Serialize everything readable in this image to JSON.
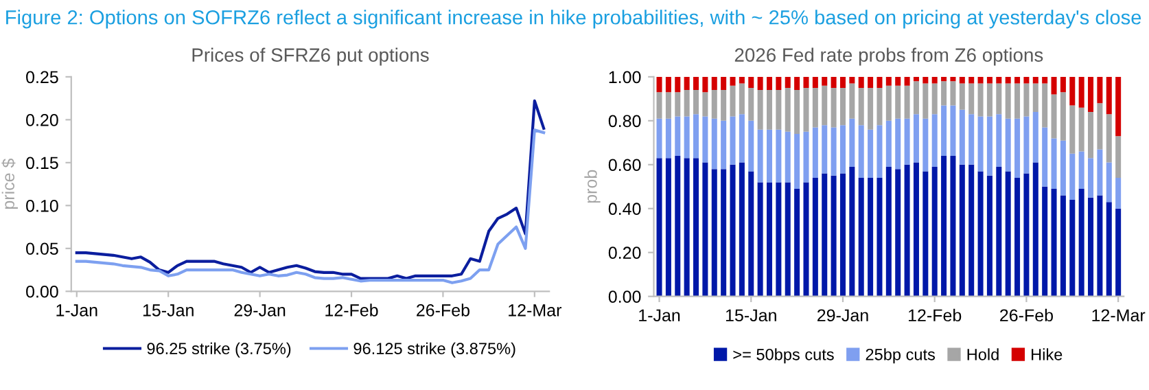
{
  "chart_data": [
    {
      "type": "line",
      "title": "Prices of SFRZ6 put options",
      "ylabel": "price $",
      "annotations": [
        "Figure 2: Options on SOFRZ6 reflect a significant increase in hike probabilities, with ~ 25% based on pricing at yesterday's close"
      ],
      "categories": [
        "1-Jan",
        null,
        null,
        null,
        null,
        null,
        null,
        null,
        null,
        null,
        "15-Jan",
        null,
        null,
        null,
        null,
        null,
        null,
        null,
        null,
        null,
        "29-Jan",
        null,
        null,
        null,
        null,
        null,
        null,
        null,
        null,
        null,
        "12-Feb",
        null,
        null,
        null,
        null,
        null,
        null,
        null,
        null,
        null,
        "26-Feb",
        null,
        null,
        null,
        null,
        null,
        null,
        null,
        null,
        null,
        "12-Mar",
        null
      ],
      "series": [
        {
          "name": "96.25 strike (3.75%)",
          "color": "#0b1e9e",
          "values": [
            0.045,
            0.045,
            0.044,
            0.043,
            0.042,
            0.04,
            0.038,
            0.04,
            0.034,
            0.025,
            0.022,
            0.03,
            0.035,
            0.035,
            0.035,
            0.035,
            0.032,
            0.03,
            0.028,
            0.022,
            0.028,
            0.022,
            0.025,
            0.028,
            0.03,
            0.027,
            0.023,
            0.022,
            0.022,
            0.02,
            0.02,
            0.015,
            0.015,
            0.015,
            0.015,
            0.018,
            0.015,
            0.018,
            0.018,
            0.018,
            0.018,
            0.018,
            0.02,
            0.038,
            0.035,
            0.07,
            0.085,
            0.09,
            0.097,
            0.067,
            0.222,
            0.19
          ]
        },
        {
          "name": "96.125 strike (3.875%)",
          "color": "#7da0f0",
          "values": [
            0.035,
            0.035,
            0.034,
            0.033,
            0.032,
            0.03,
            0.029,
            0.028,
            0.025,
            0.024,
            0.018,
            0.02,
            0.025,
            0.025,
            0.025,
            0.025,
            0.025,
            0.025,
            0.022,
            0.02,
            0.018,
            0.02,
            0.018,
            0.019,
            0.022,
            0.02,
            0.016,
            0.015,
            0.015,
            0.016,
            0.014,
            0.012,
            0.013,
            0.013,
            0.013,
            0.013,
            0.013,
            0.013,
            0.013,
            0.013,
            0.013,
            0.01,
            0.012,
            0.015,
            0.025,
            0.025,
            0.055,
            0.065,
            0.075,
            0.05,
            0.188,
            0.185
          ]
        }
      ],
      "ylim": [
        0,
        0.25
      ],
      "yticks": [
        {
          "value": 0,
          "label": "0.00"
        },
        {
          "value": 0.05,
          "label": "0.05"
        },
        {
          "value": 0.1,
          "label": "0.10"
        },
        {
          "value": 0.15,
          "label": "0.15"
        },
        {
          "value": 0.2,
          "label": "0.20"
        },
        {
          "value": 0.25,
          "label": "0.25"
        }
      ],
      "grid": false,
      "legend": "bottom",
      "marker": "none",
      "line_style": "solid"
    },
    {
      "type": "bar",
      "stacked": true,
      "title": "2026 Fed rate probs from Z6 options",
      "ylabel": "prob",
      "categories": [
        "1-Jan",
        null,
        null,
        null,
        null,
        null,
        null,
        null,
        null,
        null,
        "15-Jan",
        null,
        null,
        null,
        null,
        null,
        null,
        null,
        null,
        null,
        "29-Jan",
        null,
        null,
        null,
        null,
        null,
        null,
        null,
        null,
        null,
        "12-Feb",
        null,
        null,
        null,
        null,
        null,
        null,
        null,
        null,
        null,
        "26-Feb",
        null,
        null,
        null,
        null,
        null,
        null,
        null,
        null,
        null,
        "12-Mar"
      ],
      "series": [
        {
          "name": ">= 50bps cuts",
          "color": "#0018a8",
          "values": [
            0.63,
            0.63,
            0.64,
            0.63,
            0.63,
            0.61,
            0.58,
            0.58,
            0.6,
            0.61,
            0.57,
            0.52,
            0.52,
            0.52,
            0.52,
            0.49,
            0.52,
            0.54,
            0.56,
            0.55,
            0.56,
            0.59,
            0.54,
            0.54,
            0.54,
            0.59,
            0.58,
            0.6,
            0.61,
            0.57,
            0.59,
            0.64,
            0.64,
            0.6,
            0.6,
            0.57,
            0.55,
            0.59,
            0.57,
            0.54,
            0.56,
            0.61,
            0.5,
            0.49,
            0.46,
            0.44,
            0.49,
            0.45,
            0.46,
            0.43,
            0.4
          ]
        },
        {
          "name": "25bp cuts",
          "color": "#7f9ff0",
          "values": [
            0.18,
            0.18,
            0.18,
            0.19,
            0.2,
            0.21,
            0.23,
            0.22,
            0.22,
            0.22,
            0.23,
            0.24,
            0.24,
            0.24,
            0.23,
            0.25,
            0.23,
            0.23,
            0.22,
            0.22,
            0.22,
            0.22,
            0.24,
            0.22,
            0.24,
            0.21,
            0.23,
            0.21,
            0.22,
            0.24,
            0.24,
            0.23,
            0.23,
            0.25,
            0.23,
            0.25,
            0.27,
            0.24,
            0.24,
            0.27,
            0.26,
            0.23,
            0.27,
            0.23,
            0.25,
            0.21,
            0.17,
            0.18,
            0.21,
            0.18,
            0.14
          ]
        },
        {
          "name": "Hold",
          "color": "#a6a6a6",
          "values": [
            0.12,
            0.12,
            0.11,
            0.12,
            0.11,
            0.11,
            0.13,
            0.14,
            0.14,
            0.14,
            0.15,
            0.18,
            0.18,
            0.18,
            0.2,
            0.2,
            0.2,
            0.18,
            0.18,
            0.18,
            0.17,
            0.16,
            0.17,
            0.19,
            0.17,
            0.16,
            0.15,
            0.15,
            0.15,
            0.16,
            0.14,
            0.11,
            0.11,
            0.12,
            0.14,
            0.15,
            0.15,
            0.14,
            0.16,
            0.16,
            0.15,
            0.13,
            0.2,
            0.2,
            0.22,
            0.22,
            0.2,
            0.21,
            0.21,
            0.22,
            0.19
          ]
        },
        {
          "name": "Hike",
          "color": "#d40000",
          "values": [
            0.07,
            0.07,
            0.07,
            0.06,
            0.06,
            0.07,
            0.06,
            0.06,
            0.04,
            0.03,
            0.05,
            0.06,
            0.06,
            0.06,
            0.05,
            0.06,
            0.05,
            0.05,
            0.04,
            0.05,
            0.05,
            0.03,
            0.05,
            0.05,
            0.05,
            0.04,
            0.04,
            0.04,
            0.02,
            0.03,
            0.03,
            0.02,
            0.02,
            0.03,
            0.03,
            0.03,
            0.03,
            0.03,
            0.03,
            0.03,
            0.03,
            0.03,
            0.03,
            0.08,
            0.07,
            0.13,
            0.14,
            0.16,
            0.12,
            0.17,
            0.27
          ]
        }
      ],
      "ylim": [
        0,
        1
      ],
      "yticks": [
        {
          "value": 0,
          "label": "0.00"
        },
        {
          "value": 0.2,
          "label": "0.20"
        },
        {
          "value": 0.4,
          "label": "0.40"
        },
        {
          "value": 0.6,
          "label": "0.60"
        },
        {
          "value": 0.8,
          "label": "0.80"
        },
        {
          "value": 1,
          "label": "1.00"
        }
      ],
      "grid": false,
      "legend": "bottom"
    }
  ]
}
